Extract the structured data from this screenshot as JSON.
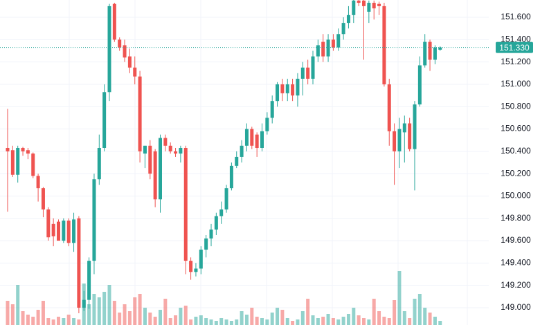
{
  "chart_data": {
    "type": "candlestick",
    "colors": {
      "up": "#26a69a",
      "down": "#ef5350"
    },
    "open": [
      150.43,
      150.41,
      150.19,
      150.43,
      150.41,
      150.38,
      150.18,
      150.07,
      149.88,
      149.75,
      149.77,
      149.6,
      149.78,
      149.58,
      149.8,
      149.0,
      149.07,
      149.42,
      150.15,
      150.43,
      150.93,
      151.72,
      151.4,
      151.35,
      151.25,
      151.15,
      151.07,
      150.38,
      150.45,
      150.4,
      149.97,
      150.52,
      150.45,
      150.4,
      150.38,
      150.43,
      149.42,
      149.32,
      149.35,
      149.52,
      149.62,
      149.7,
      149.82,
      149.88,
      150.07,
      150.27,
      150.35,
      150.45,
      150.6,
      150.55,
      150.43,
      150.58,
      150.7,
      150.85,
      151.0,
      150.92,
      151.0,
      150.9,
      151.05,
      151.15,
      151.05,
      151.25,
      151.38,
      151.25,
      151.4,
      151.33,
      151.45,
      151.55,
      151.62,
      151.75,
      151.75,
      151.65,
      151.73,
      151.72,
      151.7,
      151.0,
      150.58,
      150.4,
      150.57,
      150.65,
      150.42,
      150.82,
      151.17,
      151.38,
      151.22,
      151.31
    ],
    "high": [
      150.78,
      150.45,
      150.45,
      150.44,
      150.43,
      150.39,
      150.2,
      150.08,
      149.9,
      149.8,
      149.79,
      149.8,
      149.8,
      149.85,
      149.82,
      149.15,
      149.45,
      150.2,
      150.55,
      151.0,
      151.72,
      151.73,
      151.42,
      151.4,
      151.32,
      151.25,
      151.12,
      150.45,
      150.5,
      150.42,
      150.55,
      150.55,
      150.48,
      150.43,
      150.45,
      150.45,
      149.45,
      149.4,
      149.55,
      149.65,
      149.75,
      149.85,
      149.95,
      150.1,
      150.3,
      150.4,
      150.5,
      150.65,
      150.62,
      150.57,
      150.65,
      150.75,
      150.9,
      151.02,
      151.05,
      151.05,
      151.05,
      151.1,
      151.2,
      151.22,
      151.3,
      151.4,
      151.45,
      151.45,
      151.45,
      151.5,
      151.6,
      151.7,
      151.8,
      151.8,
      151.78,
      151.75,
      151.75,
      151.74,
      151.73,
      151.05,
      150.65,
      150.7,
      150.72,
      150.7,
      150.85,
      151.25,
      151.45,
      151.4,
      151.35,
      151.34
    ],
    "low": [
      149.86,
      150.17,
      150.12,
      150.36,
      150.33,
      150.16,
      149.95,
      149.81,
      149.6,
      149.55,
      149.6,
      149.58,
      149.55,
      149.5,
      148.95,
      148.97,
      148.99,
      149.3,
      150.1,
      150.4,
      150.85,
      151.38,
      151.3,
      151.2,
      151.1,
      151.0,
      150.3,
      150.25,
      150.15,
      149.9,
      149.85,
      150.4,
      150.38,
      150.35,
      150.3,
      149.3,
      149.25,
      149.28,
      149.3,
      149.45,
      149.55,
      149.65,
      149.75,
      149.85,
      150.05,
      150.25,
      150.3,
      150.4,
      150.42,
      150.35,
      150.4,
      150.55,
      150.65,
      150.8,
      150.85,
      150.85,
      150.85,
      150.8,
      150.9,
      151.0,
      151.0,
      151.2,
      151.2,
      151.2,
      151.3,
      151.3,
      151.4,
      151.5,
      151.55,
      151.7,
      151.22,
      151.55,
      151.58,
      151.62,
      150.98,
      150.45,
      150.1,
      150.25,
      150.3,
      150.4,
      150.05,
      150.8,
      151.15,
      151.12,
      151.18,
      151.3
    ],
    "close": [
      150.4,
      150.19,
      150.43,
      150.4,
      150.38,
      150.18,
      150.07,
      149.88,
      149.63,
      149.64,
      149.6,
      149.78,
      149.58,
      149.79,
      149.0,
      149.07,
      149.42,
      150.15,
      150.43,
      150.93,
      151.7,
      151.4,
      151.33,
      151.24,
      151.15,
      151.07,
      150.4,
      150.45,
      150.2,
      149.97,
      150.52,
      150.45,
      150.4,
      150.38,
      150.43,
      149.42,
      149.32,
      149.35,
      149.52,
      149.62,
      149.7,
      149.82,
      149.88,
      150.07,
      150.27,
      150.35,
      150.45,
      150.6,
      150.45,
      150.43,
      150.58,
      150.7,
      150.85,
      151.0,
      150.92,
      151.0,
      150.9,
      151.05,
      151.15,
      151.05,
      151.25,
      151.35,
      151.25,
      151.4,
      151.33,
      151.45,
      151.55,
      151.62,
      151.75,
      151.73,
      151.7,
      151.73,
      151.68,
      151.7,
      151.0,
      150.58,
      150.4,
      150.6,
      150.65,
      150.42,
      150.82,
      151.17,
      151.38,
      151.22,
      151.33,
      151.33
    ],
    "volume": [
      35,
      30,
      58,
      20,
      15,
      12,
      22,
      35,
      10,
      8,
      12,
      10,
      15,
      10,
      8,
      60,
      30,
      45,
      40,
      48,
      58,
      35,
      18,
      30,
      20,
      40,
      45,
      25,
      18,
      12,
      22,
      38,
      10,
      14,
      25,
      28,
      8,
      12,
      14,
      10,
      8,
      6,
      10,
      8,
      6,
      8,
      20,
      15,
      25,
      12,
      10,
      8,
      18,
      25,
      22,
      10,
      6,
      8,
      20,
      38,
      14,
      10,
      12,
      16,
      10,
      8,
      12,
      16,
      25,
      14,
      10,
      8,
      38,
      20,
      12,
      10,
      36,
      78,
      20,
      10,
      38,
      45,
      25,
      18,
      12,
      6
    ],
    "vlim": [
      0,
      160
    ],
    "ylim": [
      148.845,
      151.755
    ],
    "yticks": [
      {
        "value": 149.0,
        "label": "149.000"
      },
      {
        "value": 149.2,
        "label": "149.200"
      },
      {
        "value": 149.4,
        "label": "149.400"
      },
      {
        "value": 149.6,
        "label": "149.600"
      },
      {
        "value": 149.8,
        "label": "149.800"
      },
      {
        "value": 150.0,
        "label": "150.000"
      },
      {
        "value": 150.2,
        "label": "150.200"
      },
      {
        "value": 150.4,
        "label": "150.400"
      },
      {
        "value": 150.6,
        "label": "150.600"
      },
      {
        "value": 150.8,
        "label": "150.800"
      },
      {
        "value": 151.0,
        "label": "151.000"
      },
      {
        "value": 151.2,
        "label": "151.200"
      },
      {
        "value": 151.4,
        "label": "151.400"
      },
      {
        "value": 151.6,
        "label": "151.600"
      }
    ],
    "grid": true,
    "last_price": {
      "value": 151.33,
      "label": "151.330"
    }
  }
}
